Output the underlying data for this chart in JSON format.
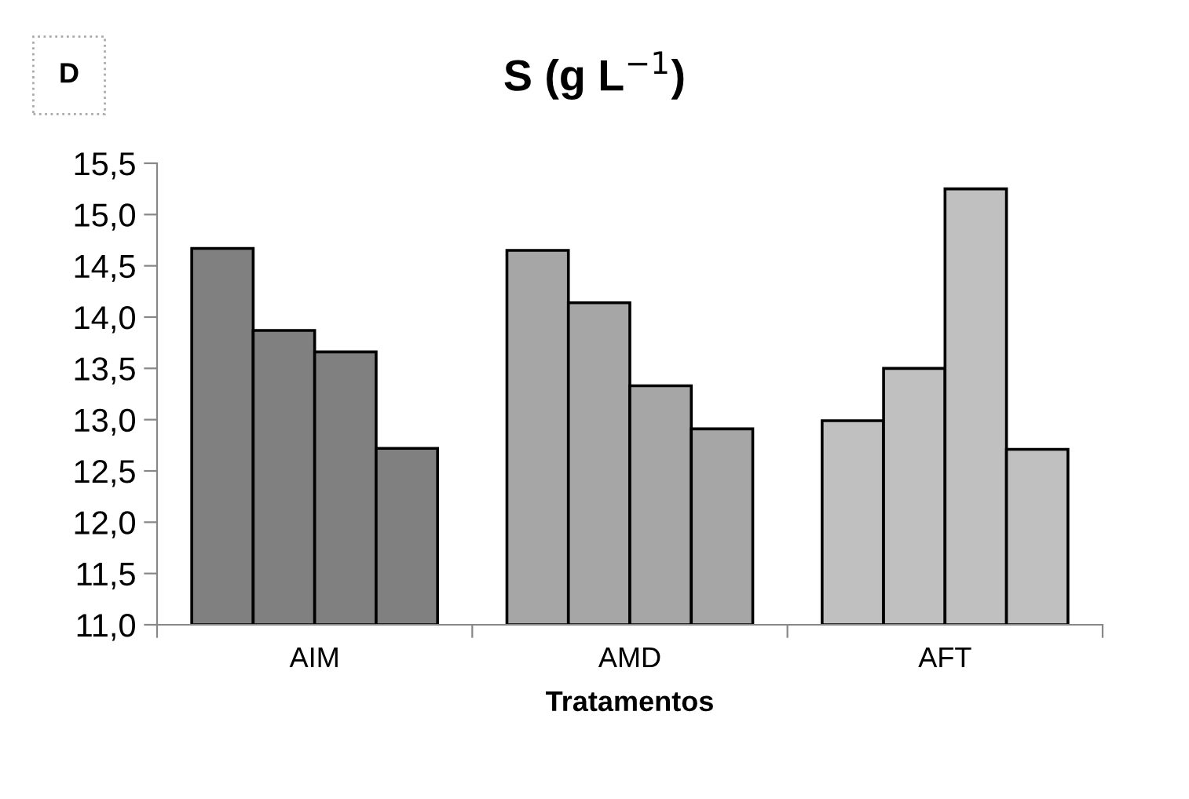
{
  "chart_data": {
    "type": "bar",
    "title": "S (g L$^{−1}$)",
    "xlabel": "Tratamentos",
    "annotations": [
      "D"
    ],
    "categories": [
      "AIM",
      "AMD",
      "AFT"
    ],
    "series": [
      {
        "colors": [
          "#808080",
          "#a6a6a6",
          "#c0c0c0"
        ],
        "values": [
          14.67,
          14.65,
          12.99
        ]
      },
      {
        "colors": [
          "#808080",
          "#a6a6a6",
          "#c0c0c0"
        ],
        "values": [
          13.87,
          14.14,
          13.5
        ]
      },
      {
        "colors": [
          "#808080",
          "#a6a6a6",
          "#c0c0c0"
        ],
        "values": [
          13.66,
          13.33,
          15.25
        ]
      },
      {
        "colors": [
          "#808080",
          "#a6a6a6",
          "#c0c0c0"
        ],
        "values": [
          12.72,
          12.91,
          12.71
        ]
      }
    ],
    "ylim": [
      11.0,
      15.5
    ],
    "yticks": [
      {
        "value": 11.0,
        "label": "11,0"
      },
      {
        "value": 11.5,
        "label": "11,5"
      },
      {
        "value": 12.0,
        "label": "12,0"
      },
      {
        "value": 12.5,
        "label": "12,5"
      },
      {
        "value": 13.0,
        "label": "13,0"
      },
      {
        "value": 13.5,
        "label": "13,5"
      },
      {
        "value": 14.0,
        "label": "14,0"
      },
      {
        "value": 14.5,
        "label": "14,5"
      },
      {
        "value": 15.0,
        "label": "15,0"
      },
      {
        "value": 15.5,
        "label": "15,5"
      }
    ],
    "grid": false,
    "legend": false
  }
}
